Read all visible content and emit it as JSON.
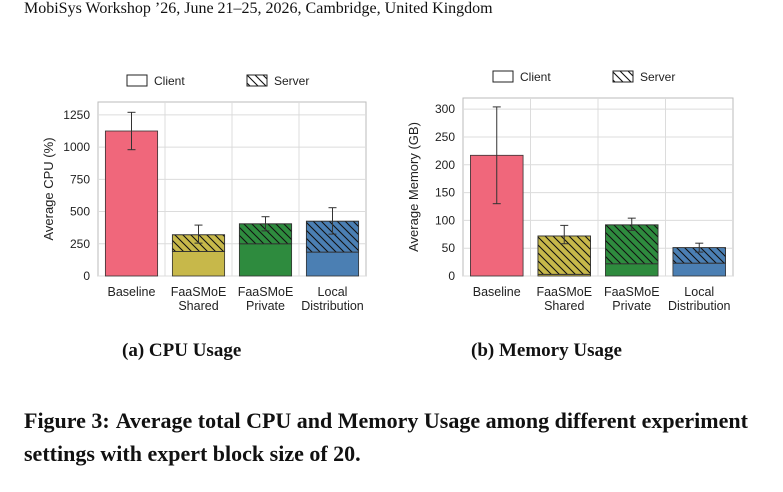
{
  "header": {
    "running_head": "MobiSys Workshop ’26, June 21–25, 2026, Cambridge, United Kingdom"
  },
  "figure": {
    "caption_label": "Figure 3:",
    "caption_text": "Average total CPU and Memory Usage among different experiment settings with expert block size of 20."
  },
  "colors": {
    "Baseline": "#f0677b",
    "FaaSMoE Shared": "#c7b84a",
    "FaaSMoE Private": "#2e8b3e",
    "Local Distribution": "#4b7fb3"
  },
  "chart_data": [
    {
      "id": "cpu",
      "type": "bar",
      "subcaption": "(a) CPU Usage",
      "ylabel": "Average CPU (%)",
      "xlabel": "",
      "ylim": [
        0,
        1350
      ],
      "yticks": [
        0,
        250,
        500,
        750,
        1000,
        1250
      ],
      "grid": true,
      "legend_position": "top",
      "legend": [
        {
          "name": "Client",
          "pattern": "none"
        },
        {
          "name": "Server",
          "pattern": "hatch"
        }
      ],
      "categories": [
        [
          "Baseline"
        ],
        [
          "FaaSMoE",
          "Shared"
        ],
        [
          "FaaSMoE",
          "Private"
        ],
        [
          "Local",
          "Distribution"
        ]
      ],
      "category_colors": [
        "Baseline",
        "FaaSMoE Shared",
        "FaaSMoE Private",
        "Local Distribution"
      ],
      "series": [
        {
          "name": "Client",
          "values": [
            1125,
            190,
            250,
            185
          ]
        },
        {
          "name": "Server",
          "values": [
            0,
            130,
            155,
            240
          ]
        }
      ],
      "totals": [
        1125,
        320,
        405,
        425
      ],
      "errors": [
        [
          980,
          1270
        ],
        [
          255,
          395
        ],
        [
          350,
          460
        ],
        [
          325,
          530
        ]
      ]
    },
    {
      "id": "mem",
      "type": "bar",
      "subcaption": "(b) Memory Usage",
      "ylabel": "Average Memory (GB)",
      "xlabel": "",
      "ylim": [
        0,
        320
      ],
      "yticks": [
        0,
        50,
        100,
        150,
        200,
        250,
        300
      ],
      "grid": true,
      "legend_position": "top",
      "legend": [
        {
          "name": "Client",
          "pattern": "none"
        },
        {
          "name": "Server",
          "pattern": "hatch"
        }
      ],
      "categories": [
        [
          "Baseline"
        ],
        [
          "FaaSMoE",
          "Shared"
        ],
        [
          "FaaSMoE",
          "Private"
        ],
        [
          "Local",
          "Distribution"
        ]
      ],
      "category_colors": [
        "Baseline",
        "FaaSMoE Shared",
        "FaaSMoE Private",
        "Local Distribution"
      ],
      "series": [
        {
          "name": "Client",
          "values": [
            217,
            3,
            22,
            23
          ]
        },
        {
          "name": "Server",
          "values": [
            0,
            69,
            70,
            28
          ]
        }
      ],
      "totals": [
        217,
        72,
        92,
        51
      ],
      "errors": [
        [
          130,
          304
        ],
        [
          58,
          91
        ],
        [
          82,
          104
        ],
        [
          43,
          59
        ]
      ]
    }
  ]
}
